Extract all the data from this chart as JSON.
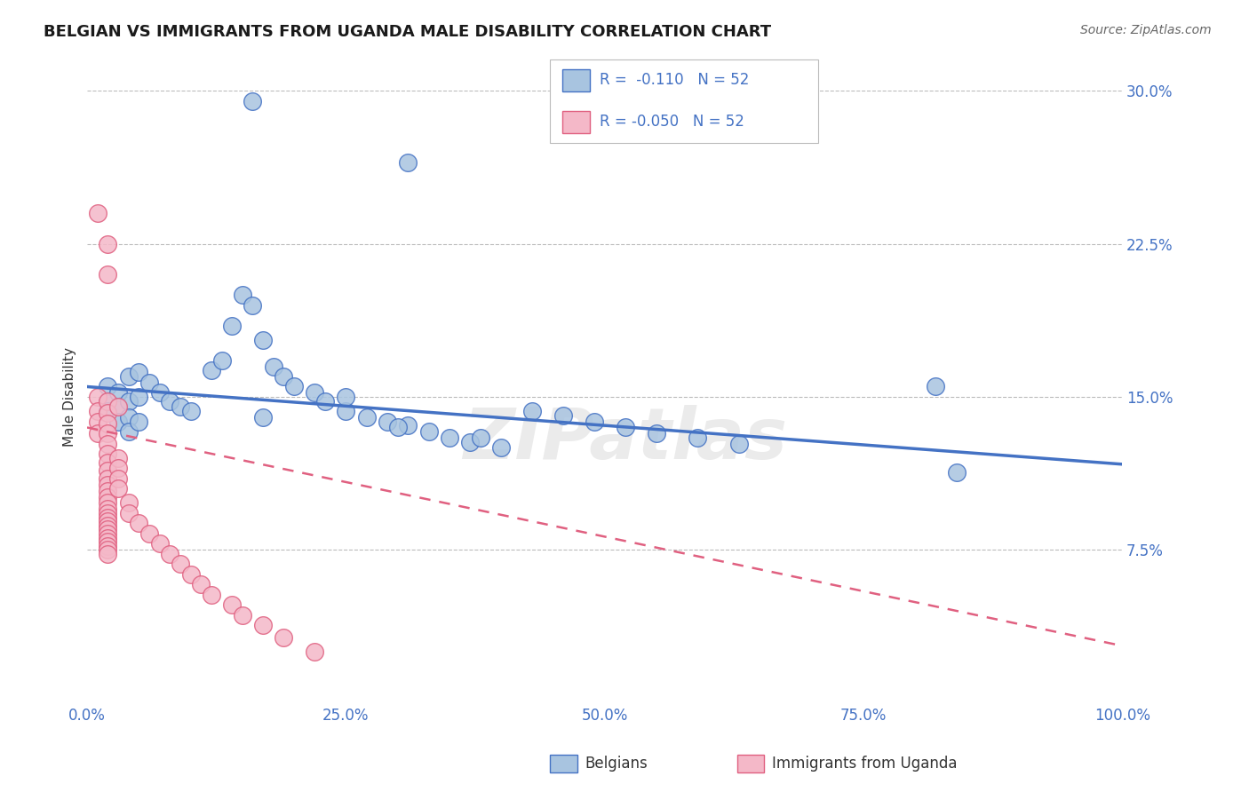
{
  "title": "BELGIAN VS IMMIGRANTS FROM UGANDA MALE DISABILITY CORRELATION CHART",
  "source": "Source: ZipAtlas.com",
  "ylabel": "Male Disability",
  "xlim": [
    0.0,
    1.0
  ],
  "ylim": [
    0.0,
    0.3
  ],
  "yticks": [
    0.075,
    0.15,
    0.225,
    0.3
  ],
  "ytick_labels": [
    "7.5%",
    "15.0%",
    "22.5%",
    "30.0%"
  ],
  "xticks": [
    0.0,
    0.25,
    0.5,
    0.75,
    1.0
  ],
  "xtick_labels": [
    "0.0%",
    "25.0%",
    "50.0%",
    "75.0%",
    "100.0%"
  ],
  "belgian_color": "#a8c4e0",
  "belgian_edge_color": "#4472c4",
  "uganda_color": "#f4b8c8",
  "uganda_edge_color": "#e06080",
  "blue_line_color": "#4472c4",
  "pink_line_color": "#e06080",
  "watermark": "ZIPatlas",
  "bel_line_start": 0.155,
  "bel_line_end": 0.117,
  "uga_line_start": 0.135,
  "uga_line_end": 0.028,
  "belgian_x": [
    0.02,
    0.02,
    0.02,
    0.03,
    0.03,
    0.03,
    0.04,
    0.04,
    0.04,
    0.04,
    0.05,
    0.05,
    0.05,
    0.06,
    0.07,
    0.08,
    0.09,
    0.1,
    0.12,
    0.13,
    0.14,
    0.15,
    0.16,
    0.17,
    0.18,
    0.19,
    0.2,
    0.22,
    0.23,
    0.25,
    0.27,
    0.29,
    0.31,
    0.33,
    0.35,
    0.37,
    0.4,
    0.43,
    0.46,
    0.49,
    0.52,
    0.55,
    0.59,
    0.63,
    0.17,
    0.25,
    0.3,
    0.38,
    0.82,
    0.84,
    0.16,
    0.31
  ],
  "belgian_y": [
    0.155,
    0.148,
    0.143,
    0.152,
    0.145,
    0.138,
    0.16,
    0.148,
    0.14,
    0.133,
    0.162,
    0.15,
    0.138,
    0.157,
    0.152,
    0.148,
    0.145,
    0.143,
    0.163,
    0.168,
    0.185,
    0.2,
    0.195,
    0.178,
    0.165,
    0.16,
    0.155,
    0.152,
    0.148,
    0.143,
    0.14,
    0.138,
    0.136,
    0.133,
    0.13,
    0.128,
    0.125,
    0.143,
    0.141,
    0.138,
    0.135,
    0.132,
    0.13,
    0.127,
    0.14,
    0.15,
    0.135,
    0.13,
    0.155,
    0.113,
    0.295,
    0.265
  ],
  "uganda_x": [
    0.01,
    0.01,
    0.01,
    0.01,
    0.02,
    0.02,
    0.02,
    0.02,
    0.02,
    0.02,
    0.02,
    0.02,
    0.02,
    0.02,
    0.02,
    0.02,
    0.02,
    0.02,
    0.02,
    0.02,
    0.02,
    0.02,
    0.02,
    0.02,
    0.02,
    0.02,
    0.02,
    0.02,
    0.02,
    0.03,
    0.03,
    0.03,
    0.03,
    0.04,
    0.04,
    0.05,
    0.06,
    0.07,
    0.08,
    0.09,
    0.1,
    0.11,
    0.12,
    0.14,
    0.15,
    0.17,
    0.19,
    0.22,
    0.01,
    0.02,
    0.02,
    0.03
  ],
  "uganda_y": [
    0.15,
    0.143,
    0.138,
    0.132,
    0.148,
    0.142,
    0.137,
    0.132,
    0.127,
    0.122,
    0.118,
    0.114,
    0.11,
    0.107,
    0.104,
    0.101,
    0.098,
    0.095,
    0.093,
    0.091,
    0.089,
    0.087,
    0.085,
    0.083,
    0.081,
    0.079,
    0.077,
    0.075,
    0.073,
    0.12,
    0.115,
    0.11,
    0.105,
    0.098,
    0.093,
    0.088,
    0.083,
    0.078,
    0.073,
    0.068,
    0.063,
    0.058,
    0.053,
    0.048,
    0.043,
    0.038,
    0.032,
    0.025,
    0.24,
    0.225,
    0.21,
    0.145
  ]
}
